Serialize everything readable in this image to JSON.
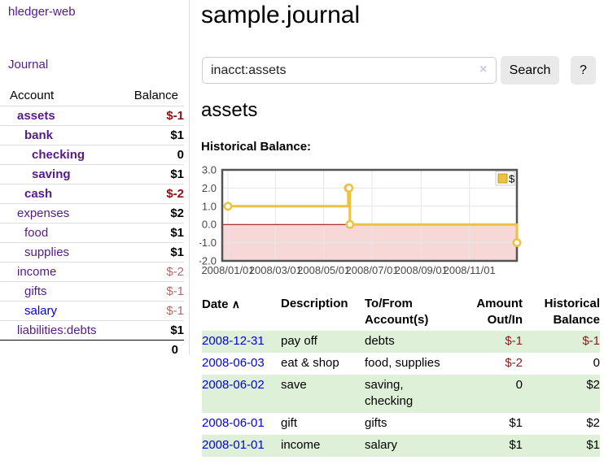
{
  "app": {
    "brand": "hledger-web",
    "nav_journal": "Journal"
  },
  "colors": {
    "visited_link": "#551a8b",
    "unvisited_link": "#0000ee",
    "negative_strong": "#8b1212",
    "negative_muted": "#b26a6a",
    "row_highlight": "#dff0d8",
    "chart_line": "#edc240",
    "chart_negative_region": "#f8d7d7",
    "chart_zero_line": "#8b0000"
  },
  "icons": {
    "sort_asc": "∧",
    "clear": "×"
  },
  "sidebar": {
    "accounts_header": {
      "account": "Account",
      "balance": "Balance"
    },
    "accounts": [
      {
        "name": "assets",
        "indent": 1,
        "balance": "$-1",
        "bold": true,
        "negative": true,
        "unvisited": false
      },
      {
        "name": "bank",
        "indent": 2,
        "balance": "$1",
        "bold": true,
        "negative": false,
        "unvisited": false
      },
      {
        "name": "checking",
        "indent": 3,
        "balance": "0",
        "bold": true,
        "negative": false,
        "unvisited": false
      },
      {
        "name": "saving",
        "indent": 3,
        "balance": "$1",
        "bold": true,
        "negative": false,
        "unvisited": false
      },
      {
        "name": "cash",
        "indent": 2,
        "balance": "$-2",
        "bold": true,
        "negative": true,
        "unvisited": false
      },
      {
        "name": "expenses",
        "indent": 1,
        "balance": "$2",
        "bold": false,
        "negative": false,
        "unvisited": false
      },
      {
        "name": "food",
        "indent": 2,
        "balance": "$1",
        "bold": false,
        "negative": false,
        "unvisited": false
      },
      {
        "name": "supplies",
        "indent": 2,
        "balance": "$1",
        "bold": false,
        "negative": false,
        "unvisited": false
      },
      {
        "name": "income",
        "indent": 1,
        "balance": "$-2",
        "bold": false,
        "negative": true,
        "unvisited": false
      },
      {
        "name": "gifts",
        "indent": 2,
        "balance": "$-1",
        "bold": false,
        "negative": true,
        "unvisited": false
      },
      {
        "name": "salary",
        "indent": 2,
        "balance": "$-1",
        "bold": false,
        "negative": true,
        "unvisited": true
      },
      {
        "name": "liabilities:debts",
        "indent": 1,
        "balance": "$1",
        "bold": false,
        "negative": false,
        "unvisited": false
      }
    ],
    "total": "0"
  },
  "header": {
    "title": "sample.journal"
  },
  "search": {
    "value": "inacct:assets",
    "button": "Search",
    "help_button": "?"
  },
  "account_page": {
    "title": "assets",
    "chart_label": "Historical Balance:"
  },
  "chart_data": {
    "type": "line",
    "title": "Historical Balance:",
    "step": true,
    "series": [
      {
        "name": "$",
        "color": "#edc240",
        "points": [
          [
            "2008-01-01",
            1
          ],
          [
            "2008-06-01",
            2
          ],
          [
            "2008-06-02",
            2
          ],
          [
            "2008-06-03",
            0
          ],
          [
            "2008-12-31",
            -1
          ]
        ]
      }
    ],
    "ylim": [
      -2,
      3
    ],
    "yticks": [
      "3.0",
      "2.0",
      "1.0",
      "0.0",
      "-1.0",
      "-2.0"
    ],
    "xticks": [
      "2008/01/01",
      "2008/03/01",
      "2008/05/01",
      "2008/07/01",
      "2008/09/01",
      "2008/11/01"
    ],
    "grid": true,
    "legend_position": "top-right",
    "negative_region_color": "#f8d7d7",
    "zero_line_color": "#8b0000"
  },
  "register": {
    "columns": [
      {
        "label": "Date",
        "sortable": true
      },
      {
        "label": "Description"
      },
      {
        "label": "To/From Account(s)"
      },
      {
        "label": "Amount Out/In",
        "align": "right"
      },
      {
        "label": "Historical Balance",
        "align": "right"
      }
    ],
    "rows": [
      {
        "date": "2008-12-31",
        "description": "pay off",
        "accounts": "debts",
        "amount": "$-1",
        "balance": "$-1"
      },
      {
        "date": "2008-06-03",
        "description": "eat & shop",
        "accounts": "food, supplies",
        "amount": "$-2",
        "balance": "0"
      },
      {
        "date": "2008-06-02",
        "description": "save",
        "accounts": "saving, checking",
        "amount": "0",
        "balance": "$2"
      },
      {
        "date": "2008-06-01",
        "description": "gift",
        "accounts": "gifts",
        "amount": "$1",
        "balance": "$2"
      },
      {
        "date": "2008-01-01",
        "description": "income",
        "accounts": "salary",
        "amount": "$1",
        "balance": "$1"
      }
    ]
  }
}
